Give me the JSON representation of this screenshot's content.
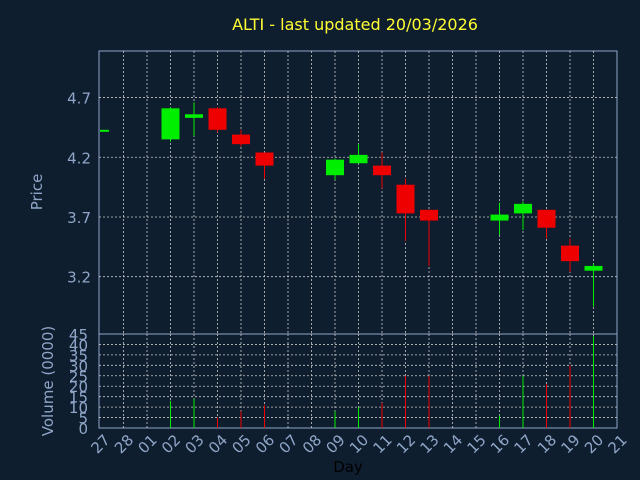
{
  "chart_data": {
    "type": "candlestick",
    "title": "ALTI - last updated 20/03/2026",
    "xlabel": "Day",
    "x_ticks": [
      "27",
      "28",
      "01",
      "02",
      "03",
      "04",
      "05",
      "06",
      "07",
      "08",
      "09",
      "10",
      "11",
      "12",
      "13",
      "14",
      "15",
      "16",
      "17",
      "18",
      "19",
      "20",
      "21"
    ],
    "price_panel": {
      "ylabel": "Price",
      "ylim": [
        2.72,
        5.09
      ],
      "y_ticks": [
        3.2,
        3.7,
        4.2,
        4.7
      ],
      "y_tick_labels": [
        "3.2",
        "3.7",
        "4.2",
        "4.7"
      ],
      "candles": [
        {
          "day": "27",
          "open": 4.43,
          "close": 4.43,
          "high": 4.43,
          "low": 4.43
        },
        {
          "day": "02",
          "open": 4.35,
          "close": 4.61,
          "high": 4.62,
          "low": 4.33
        },
        {
          "day": "03",
          "open": 4.53,
          "close": 4.56,
          "high": 4.66,
          "low": 4.38
        },
        {
          "day": "04",
          "open": 4.61,
          "close": 4.43,
          "high": 4.62,
          "low": 4.41
        },
        {
          "day": "05",
          "open": 4.39,
          "close": 4.31,
          "high": 4.43,
          "low": 4.29
        },
        {
          "day": "06",
          "open": 4.24,
          "close": 4.13,
          "high": 4.24,
          "low": 4.02
        },
        {
          "day": "09",
          "open": 4.05,
          "close": 4.18,
          "high": 4.19,
          "low": 4.01
        },
        {
          "day": "10",
          "open": 4.15,
          "close": 4.22,
          "high": 4.31,
          "low": 4.15
        },
        {
          "day": "11",
          "open": 4.13,
          "close": 4.05,
          "high": 4.24,
          "low": 3.94
        },
        {
          "day": "12",
          "open": 3.97,
          "close": 3.73,
          "high": 4.02,
          "low": 3.5
        },
        {
          "day": "13",
          "open": 3.76,
          "close": 3.67,
          "high": 3.76,
          "low": 3.29
        },
        {
          "day": "16",
          "open": 3.67,
          "close": 3.72,
          "high": 3.82,
          "low": 3.55
        },
        {
          "day": "17",
          "open": 3.73,
          "close": 3.81,
          "high": 3.83,
          "low": 3.59
        },
        {
          "day": "18",
          "open": 3.76,
          "close": 3.61,
          "high": 3.76,
          "low": 3.52
        },
        {
          "day": "19",
          "open": 3.46,
          "close": 3.33,
          "high": 3.52,
          "low": 3.24
        },
        {
          "day": "20",
          "open": 3.25,
          "close": 3.29,
          "high": 3.31,
          "low": 2.95
        }
      ]
    },
    "volume_panel": {
      "ylabel": "Volume (0000)",
      "ylim": [
        0,
        45
      ],
      "y_ticks": [
        0,
        5,
        10,
        15,
        20,
        25,
        30,
        35,
        40,
        45
      ],
      "y_tick_labels": [
        "0",
        "5",
        "10",
        "15",
        "20",
        "25",
        "30",
        "35",
        "40",
        "45"
      ],
      "bars": [
        {
          "day": "02",
          "value": 13,
          "up": true
        },
        {
          "day": "03",
          "value": 14,
          "up": true
        },
        {
          "day": "04",
          "value": 5,
          "up": false
        },
        {
          "day": "05",
          "value": 8,
          "up": false
        },
        {
          "day": "06",
          "value": 11,
          "up": false
        },
        {
          "day": "09",
          "value": 8,
          "up": true
        },
        {
          "day": "10",
          "value": 10,
          "up": true
        },
        {
          "day": "11",
          "value": 12,
          "up": false
        },
        {
          "day": "12",
          "value": 25,
          "up": false
        },
        {
          "day": "13",
          "value": 25,
          "up": false
        },
        {
          "day": "16",
          "value": 6,
          "up": true
        },
        {
          "day": "17",
          "value": 25,
          "up": true
        },
        {
          "day": "18",
          "value": 21,
          "up": false
        },
        {
          "day": "19",
          "value": 30,
          "up": false
        },
        {
          "day": "20",
          "value": 44,
          "up": true
        }
      ]
    },
    "colors": {
      "background": "#0f1e2e",
      "up": "#00ee00",
      "down": "#ee0000",
      "axis": "#8fa6c8",
      "grid": "#c8c8c8",
      "title": "#ffff33"
    }
  }
}
